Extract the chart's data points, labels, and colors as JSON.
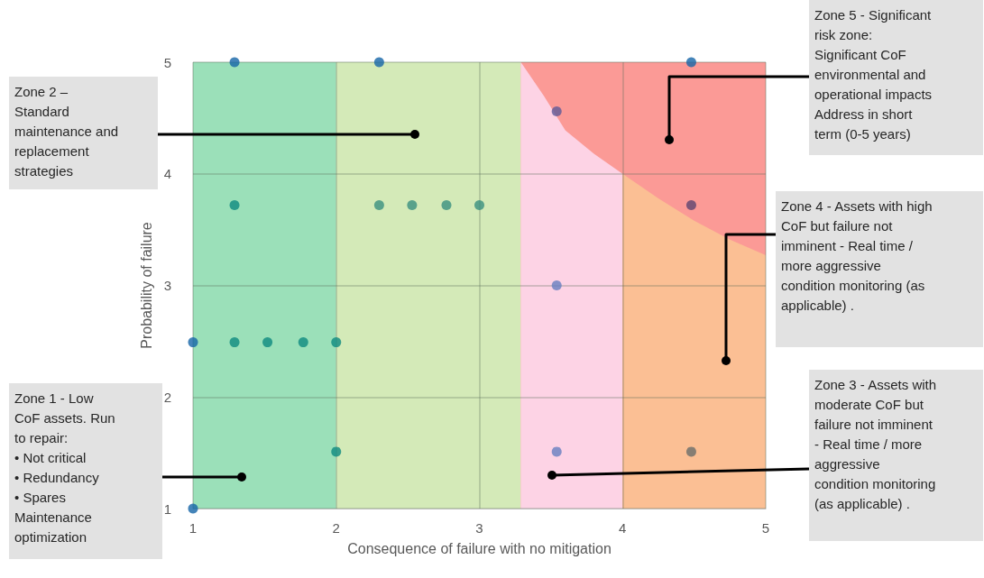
{
  "chart_data": {
    "type": "scatter",
    "xlabel": "Consequence of failure with no mitigation",
    "ylabel": "Probability of failure",
    "xlim": [
      1,
      5
    ],
    "xticks": [
      1,
      2,
      3,
      4,
      5
    ],
    "ylim": [
      1,
      5
    ],
    "yticks": [
      1,
      2,
      3,
      4,
      5
    ],
    "grid": true,
    "marker": "circle",
    "bands": [
      {
        "axis": "x",
        "from": 1,
        "to": 2,
        "color": "#9be0b9"
      },
      {
        "axis": "x",
        "from": 2,
        "to": 3.29,
        "color": "#d4eab8"
      },
      {
        "axis": "x",
        "from": 3.29,
        "to": 5,
        "color": "#fb9a96"
      }
    ],
    "series": [
      {
        "type": "area",
        "marker": "none",
        "color": "#fdd3e5",
        "x": [
          3.29,
          3.45,
          3.6,
          3.8,
          4
        ],
        "values": [
          5,
          4.7,
          4.39,
          4.18,
          4
        ]
      },
      {
        "type": "area",
        "marker": "none",
        "color": "#fbbf94",
        "x": [
          4,
          4.25,
          4.5,
          4.75,
          5
        ],
        "values": [
          4,
          3.78,
          3.58,
          3.41,
          3.27
        ]
      },
      {
        "x": [
          1,
          1.29,
          2.3,
          4.48,
          3.54,
          1.29,
          2.3,
          2.53,
          2.77,
          3.0,
          4.48,
          3.54,
          1,
          1.29,
          1.52,
          1.77,
          2.0,
          2.0,
          3.54,
          4.48
        ],
        "values": [
          1,
          5,
          5,
          5,
          4.56,
          3.72,
          3.72,
          3.72,
          3.72,
          3.72,
          3.72,
          3.0,
          2.49,
          2.49,
          2.49,
          2.49,
          2.49,
          1.51,
          1.51,
          1.51
        ],
        "colors": [
          "#1565a8",
          "#1565a8",
          "#1565a8",
          "#1565a8",
          "#5e5a98",
          "#0e8a80",
          "#3a9080",
          "#3a9080",
          "#3a9080",
          "#3a9080",
          "#5e4570",
          "#6680c0",
          "#1565a8",
          "#0e8a80",
          "#0e8a80",
          "#0e8a80",
          "#0e8a80",
          "#0e8a80",
          "#6680c0",
          "#6a6e6a"
        ]
      }
    ],
    "annotations": [
      "Zone 2 –\nStandard\nmaintenance and\nreplacement\nstrategies",
      "Zone 1 - Low\nCoF assets. Run\nto repair:\n• Not critical\n• Redundancy\n• Spares\nMaintenance\noptimization",
      "Zone 5 - Significant\nrisk zone:\nSignificant CoF\nenvironmental and\noperational impacts\nAddress in short\nterm (0-5 years)",
      "Zone 4 - Assets with high\nCoF but failure not\nimminent - Real time /\nmore aggressive\ncondition monitoring (as\napplicable) .",
      "Zone 3 - Assets with\nmoderate CoF but\nfailure not imminent\n- Real time / more\naggressive\ncondition monitoring\n(as applicable) ."
    ]
  }
}
